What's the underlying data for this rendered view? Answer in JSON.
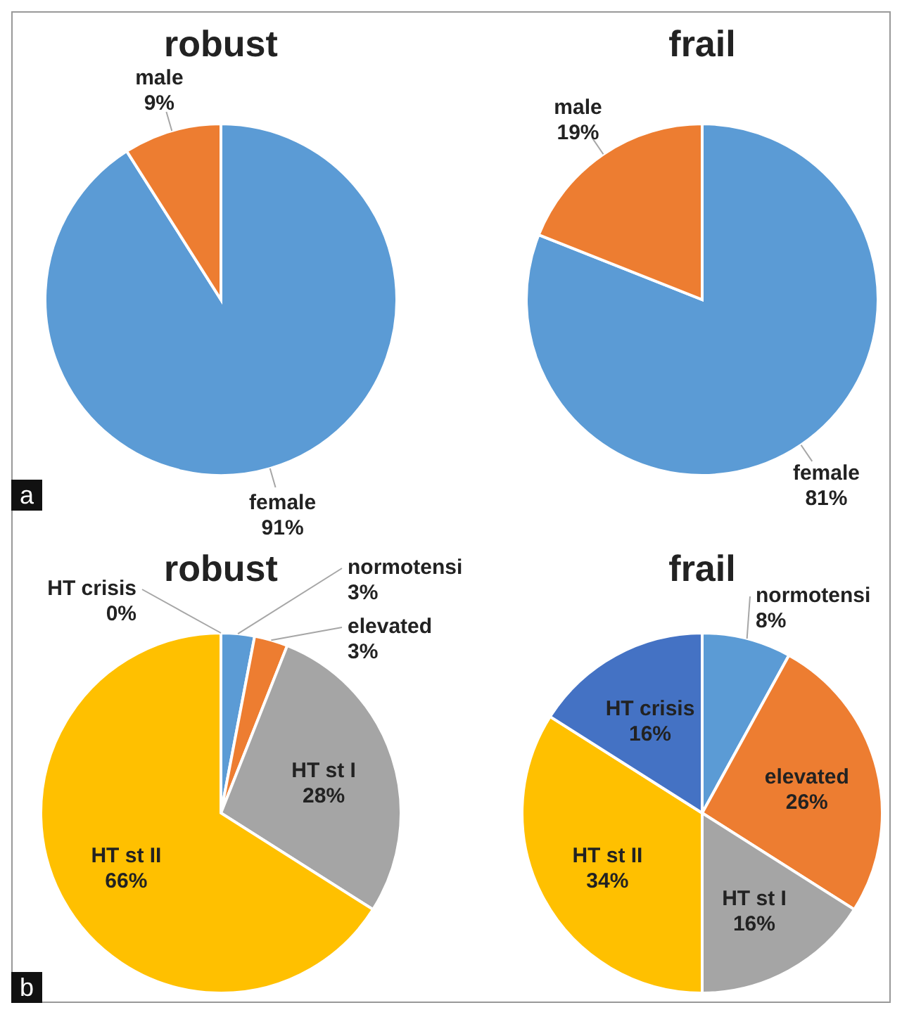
{
  "chart_data": [
    {
      "type": "pie",
      "title": "robust",
      "categories": [
        "female",
        "male"
      ],
      "values": [
        91,
        9
      ],
      "value_labels": [
        "91%",
        "9%"
      ],
      "colors": [
        "#5b9bd5",
        "#ed7d31"
      ],
      "annotations": [
        "a"
      ]
    },
    {
      "type": "pie",
      "title": "frail",
      "categories": [
        "female",
        "male"
      ],
      "values": [
        81,
        19
      ],
      "value_labels": [
        "81%",
        "19%"
      ],
      "colors": [
        "#5b9bd5",
        "#ed7d31"
      ]
    },
    {
      "type": "pie",
      "title": "robust",
      "categories": [
        "normotensi",
        "elevated",
        "HT st I",
        "HT st II",
        "HT crisis"
      ],
      "values": [
        3,
        3,
        28,
        66,
        0
      ],
      "value_labels": [
        "3%",
        "3%",
        "28%",
        "66%",
        "0%"
      ],
      "colors": [
        "#5b9bd5",
        "#ed7d31",
        "#a5a5a5",
        "#ffc000",
        "#4472c4"
      ],
      "annotations": [
        "b"
      ]
    },
    {
      "type": "pie",
      "title": "frail",
      "categories": [
        "normotensi",
        "elevated",
        "HT st I",
        "HT st II",
        "HT crisis"
      ],
      "values": [
        8,
        26,
        16,
        34,
        16
      ],
      "value_labels": [
        "8%",
        "26%",
        "16%",
        "34%",
        "16%"
      ],
      "colors": [
        "#5b9bd5",
        "#ed7d31",
        "#a5a5a5",
        "#ffc000",
        "#4472c4"
      ]
    }
  ]
}
